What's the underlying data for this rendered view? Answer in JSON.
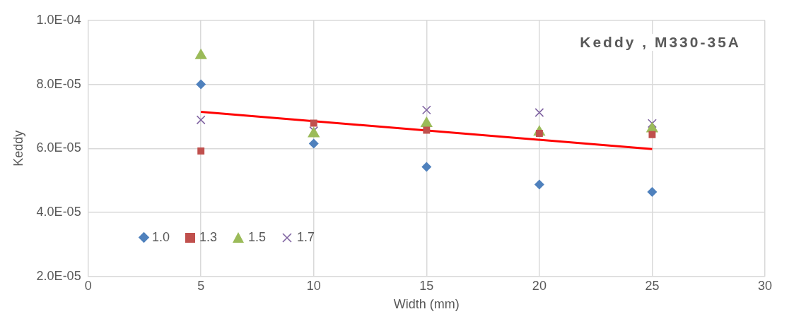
{
  "chart_data": {
    "type": "scatter",
    "title": "Keddy , M330-35A",
    "xlabel": "Width (mm)",
    "ylabel": "Keddy",
    "x": [
      5,
      10,
      15,
      20,
      25
    ],
    "series": [
      {
        "name": "1.0",
        "color": "#4f81bd",
        "marker": "diamond",
        "values": [
          8e-05,
          6.15e-05,
          5.42e-05,
          4.87e-05,
          4.64e-05
        ]
      },
      {
        "name": "1.3",
        "color": "#c0504d",
        "marker": "square",
        "values": [
          5.92e-05,
          6.79e-05,
          6.57e-05,
          6.47e-05,
          6.43e-05
        ]
      },
      {
        "name": "1.5",
        "color": "#9bbb59",
        "marker": "triangle",
        "values": [
          8.9e-05,
          6.46e-05,
          6.78e-05,
          6.51e-05,
          6.61e-05
        ]
      },
      {
        "name": "1.7",
        "color": "#8064a2",
        "marker": "cross",
        "values": [
          6.89e-05,
          6.55e-05,
          7.2e-05,
          7.12e-05,
          6.78e-05
        ]
      },
      {
        "type": "line",
        "color": "#ff0000",
        "marker": "none",
        "x": [
          5,
          25
        ],
        "values": [
          7.14e-05,
          5.98e-05
        ]
      }
    ],
    "xlim": [
      0,
      30
    ],
    "xticks": [
      0,
      5,
      10,
      15,
      20,
      25,
      30
    ],
    "ylim": [
      2e-05,
      0.0001
    ],
    "yticks": [
      {
        "value": 2e-05,
        "label": "2.0E-05"
      },
      {
        "value": 4e-05,
        "label": "4.0E-05"
      },
      {
        "value": 6e-05,
        "label": "6.0E-05"
      },
      {
        "value": 8e-05,
        "label": "8.0E-05"
      },
      {
        "value": 0.0001,
        "label": "1.0E-04"
      }
    ],
    "grid": true,
    "legend": "bottom left"
  }
}
